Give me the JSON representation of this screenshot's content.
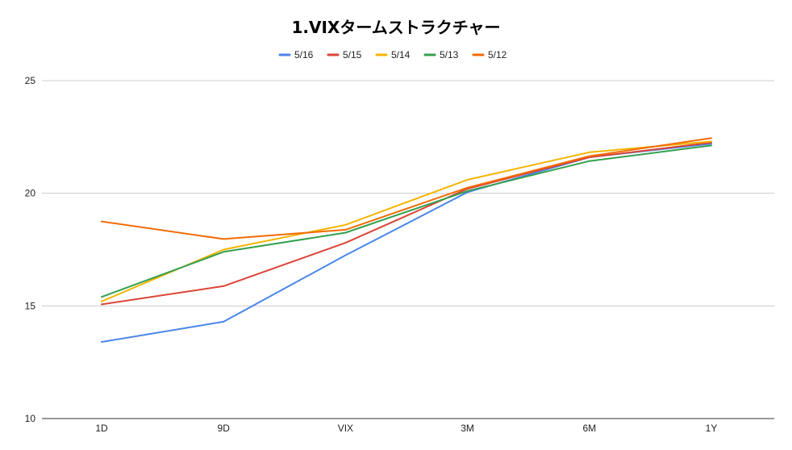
{
  "chart_data": {
    "type": "line",
    "title": "1.VIXタームストラクチャー",
    "xlabel": "",
    "ylabel": "",
    "categories": [
      "1D",
      "9D",
      "VIX",
      "3M",
      "6M",
      "1Y"
    ],
    "ylim": [
      10,
      25
    ],
    "yticks": [
      10,
      15,
      20,
      25
    ],
    "grid": true,
    "legend_position": "top",
    "series": [
      {
        "name": "5/16",
        "color": "#4a86e8",
        "values": [
          13.4,
          14.3,
          17.25,
          20.05,
          21.6,
          22.2
        ]
      },
      {
        "name": "5/15",
        "color": "#db4437",
        "values": [
          15.07,
          15.88,
          17.8,
          20.2,
          21.6,
          22.25
        ]
      },
      {
        "name": "5/14",
        "color": "#f4b400",
        "values": [
          15.2,
          17.5,
          18.6,
          20.6,
          21.82,
          22.3
        ]
      },
      {
        "name": "5/13",
        "color": "#34a04e",
        "values": [
          15.4,
          17.4,
          18.25,
          20.1,
          21.43,
          22.12
        ]
      },
      {
        "name": "5/12",
        "color": "#f26b05",
        "values": [
          18.75,
          17.97,
          18.38,
          20.25,
          21.65,
          22.45
        ]
      }
    ]
  }
}
